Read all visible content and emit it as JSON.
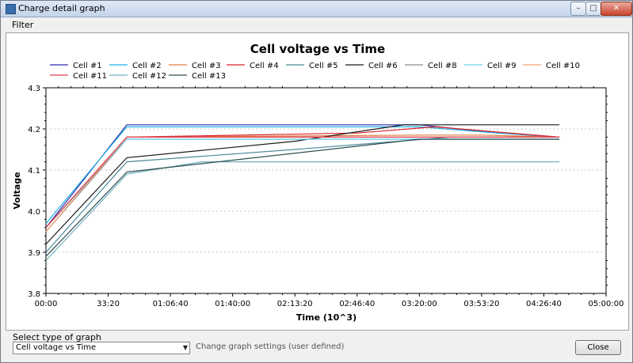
{
  "window": {
    "title": "Charge detail graph"
  },
  "menu": {
    "filter": "Filter"
  },
  "chart_data": {
    "type": "line",
    "title": "Cell voltage vs Time",
    "xlabel": "Time (10^3)",
    "ylabel": "Voltage",
    "xlim": [
      0,
      18000
    ],
    "ylim": [
      3.8,
      4.3
    ],
    "xticks": [
      0,
      2000,
      4000,
      6000,
      8000,
      10000,
      12000,
      14000,
      16000,
      18000
    ],
    "xtick_labels": [
      "00:00",
      "33:20",
      "01:06:40",
      "01:40:00",
      "02:13:20",
      "02:46:40",
      "03:20:00",
      "03:53:20",
      "04:26:40",
      "05:00:00"
    ],
    "yticks": [
      3.8,
      3.9,
      4.0,
      4.1,
      4.2,
      4.3
    ],
    "ytick_labels": [
      "3.8",
      "3.9",
      "4.0",
      "4.1",
      "4.2",
      "4.3"
    ],
    "grid": true,
    "legend_position": "top",
    "series": [
      {
        "name": "Cell #1",
        "color": "#2a2aa8",
        "x": [
          0,
          2600,
          12000,
          14500,
          16500
        ],
        "y": [
          3.96,
          4.21,
          4.21,
          4.19,
          4.18
        ]
      },
      {
        "name": "Cell #2",
        "color": "#1eb2e6",
        "x": [
          0,
          2600,
          12000,
          14500,
          16500
        ],
        "y": [
          3.97,
          4.205,
          4.205,
          4.19,
          4.18
        ]
      },
      {
        "name": "Cell #3",
        "color": "#e07a40",
        "x": [
          0,
          2600,
          12000,
          14000,
          16500
        ],
        "y": [
          3.95,
          4.18,
          4.185,
          4.185,
          4.18
        ]
      },
      {
        "name": "Cell #4",
        "color": "#d8202a",
        "x": [
          0,
          2600,
          10000,
          12500,
          16500
        ],
        "y": [
          3.96,
          4.18,
          4.19,
          4.205,
          4.18
        ]
      },
      {
        "name": "Cell #5",
        "color": "#4a8a9a",
        "x": [
          0,
          2600,
          8000,
          13000,
          16500
        ],
        "y": [
          3.9,
          4.12,
          4.15,
          4.18,
          4.18
        ]
      },
      {
        "name": "Cell #6",
        "color": "#1a1a1a",
        "x": [
          0,
          2600,
          8000,
          11500,
          16500
        ],
        "y": [
          3.92,
          4.13,
          4.17,
          4.21,
          4.21
        ]
      },
      {
        "name": "Cell #8",
        "color": "#8a8a8a",
        "x": [
          0,
          2600,
          12000,
          16500
        ],
        "y": [
          3.95,
          4.175,
          4.175,
          4.175
        ]
      },
      {
        "name": "Cell #9",
        "color": "#6ad0f0",
        "x": [
          0,
          2600,
          12000,
          16500
        ],
        "y": [
          3.96,
          4.175,
          4.175,
          4.175
        ]
      },
      {
        "name": "Cell #10",
        "color": "#f0a070",
        "x": [
          0,
          2600,
          12000,
          16500
        ],
        "y": [
          3.95,
          4.18,
          4.18,
          4.18
        ]
      },
      {
        "name": "Cell #11",
        "color": "#e04050",
        "x": [
          0,
          2600,
          12000,
          16500
        ],
        "y": [
          3.96,
          4.18,
          4.18,
          4.18
        ]
      },
      {
        "name": "Cell #12",
        "color": "#70b0c0",
        "x": [
          0,
          2600,
          5000,
          16500
        ],
        "y": [
          3.88,
          4.09,
          4.12,
          4.12
        ]
      },
      {
        "name": "Cell #13",
        "color": "#2e4e52",
        "x": [
          0,
          2600,
          12000,
          16500
        ],
        "y": [
          3.89,
          4.095,
          4.175,
          4.175
        ]
      }
    ]
  },
  "controls": {
    "select_label": "Select type of graph",
    "select_value": "Cell voltage vs Time",
    "settings_link": "Change graph settings (user defined)",
    "close_label": "Close"
  }
}
